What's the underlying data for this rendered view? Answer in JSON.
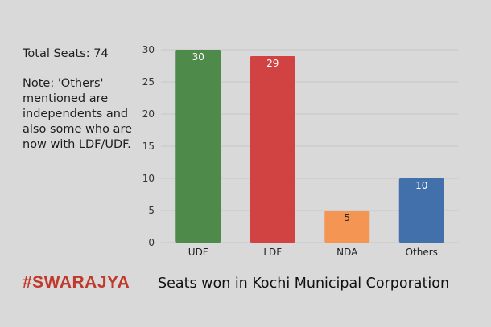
{
  "side": {
    "total": "Total Seats: 74",
    "note": "Note: 'Others' mentioned are independents and also some who are now with LDF/UDF."
  },
  "brand": "#SWARAJYA",
  "chart_data": {
    "type": "bar",
    "title": "Seats won in Kochi Municipal Corporation",
    "categories": [
      "UDF",
      "LDF",
      "NDA",
      "Others"
    ],
    "values": [
      30,
      29,
      5,
      10
    ],
    "colors": [
      "#4e8a4a",
      "#d14343",
      "#f59553",
      "#4270aa"
    ],
    "ylim": [
      0,
      30
    ],
    "yticks": [
      0,
      5,
      10,
      15,
      20,
      25,
      30
    ],
    "grid": true,
    "legend": "none"
  }
}
